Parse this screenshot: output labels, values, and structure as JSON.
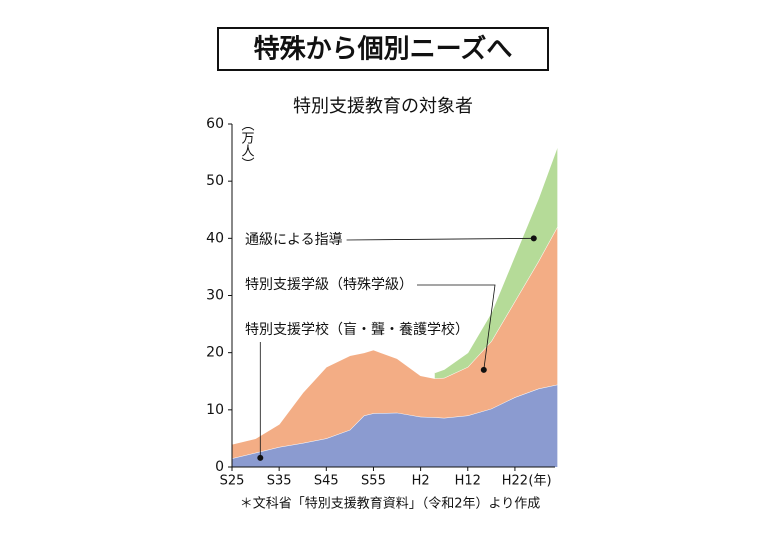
{
  "chart_data": {
    "type": "area",
    "stacked": true,
    "headline": "特殊から個別ニーズへ",
    "title": "特別支援教育の対象者",
    "ylabel": "（万人）",
    "xunit": "(年)",
    "footnote": "＊文科省「特別支援教育資料」（令和2年）より作成",
    "x": [
      1950,
      1955,
      1960,
      1965,
      1970,
      1975,
      1978,
      1980,
      1985,
      1990,
      1993,
      1995,
      2000,
      2005,
      2010,
      2015,
      2019
    ],
    "series": [
      {
        "name": "特別支援学校（盲・聾・養護学校）",
        "color": "#8b9bd0",
        "values": [
          1.5,
          2.5,
          3.5,
          4.2,
          5.0,
          6.5,
          9.0,
          9.4,
          9.5,
          8.8,
          8.7,
          8.6,
          9.0,
          10.2,
          12.2,
          13.7,
          14.4
        ]
      },
      {
        "name": "特別支援学級（特殊学級）",
        "color": "#f3ad85",
        "values": [
          2.5,
          2.5,
          4.0,
          8.8,
          12.5,
          13.0,
          11.0,
          11.1,
          9.5,
          7.2,
          6.8,
          7.0,
          8.5,
          11.8,
          16.8,
          22.3,
          27.6
        ]
      },
      {
        "name": "通級による指導",
        "color": "#b5db98",
        "values": [
          null,
          null,
          null,
          null,
          null,
          null,
          null,
          null,
          null,
          null,
          1.0,
          1.5,
          2.5,
          5.0,
          8.0,
          11.0,
          14.0
        ]
      }
    ],
    "annotations": [
      {
        "text": "通級による指導",
        "x": 2014,
        "y": 40
      },
      {
        "text": "特別支援学級（特殊学級）",
        "x": 2003.4,
        "y": 17
      },
      {
        "text": "特別支援学校（盲・聾・養護学校）",
        "x": 1956,
        "y": 1.6
      }
    ],
    "xlim": [
      1950,
      2018.5
    ],
    "ylim": [
      0,
      60
    ],
    "yticks": [
      0,
      10,
      20,
      30,
      40,
      50,
      60
    ],
    "xticks": [
      {
        "value": 1950,
        "label": "S25"
      },
      {
        "value": 1960,
        "label": "S35"
      },
      {
        "value": 1970,
        "label": "S45"
      },
      {
        "value": 1980,
        "label": "S55"
      },
      {
        "value": 1990,
        "label": "H2"
      },
      {
        "value": 2000,
        "label": "H12"
      },
      {
        "value": 2010,
        "label": "H22"
      }
    ]
  }
}
